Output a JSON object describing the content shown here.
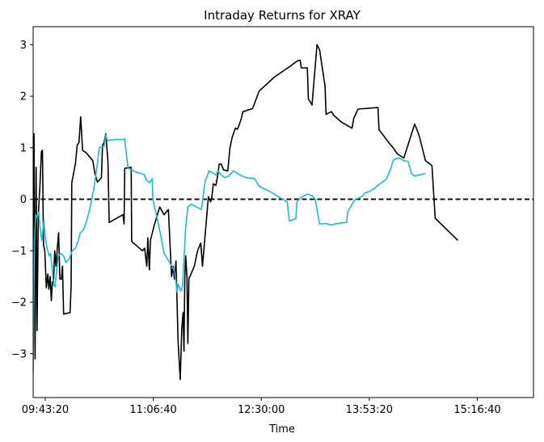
{
  "chart_data": {
    "type": "line",
    "title": "Intraday Returns for XRAY",
    "xlabel": "Time",
    "ylabel": "",
    "x_unit": "time of day (seconds since midnight)",
    "xlim": [
      34440,
      57600
    ],
    "ylim": [
      -3.85,
      3.35
    ],
    "yticks": [
      -3,
      -2,
      -1,
      0,
      1,
      2,
      3
    ],
    "ytick_labels": [
      "−3",
      "−2",
      "−1",
      "0",
      "1",
      "2",
      "3"
    ],
    "xticks": [
      35000,
      40000,
      45000,
      50000,
      55000
    ],
    "xtick_labels": [
      "09:43:20",
      "11:06:40",
      "12:30:00",
      "13:53:20",
      "15:16:40"
    ],
    "reference_line": {
      "y": 0,
      "style": "dashed",
      "color": "#000000"
    },
    "grid": false,
    "legend": "none",
    "series": [
      {
        "color": "#000000",
        "points": [
          [
            34440,
            -3.3
          ],
          [
            34480,
            1.27
          ],
          [
            34530,
            -3.1
          ],
          [
            34580,
            0.62
          ],
          [
            34620,
            -2.55
          ],
          [
            34680,
            -0.3
          ],
          [
            34750,
            0.22
          ],
          [
            34820,
            0.92
          ],
          [
            34870,
            0.95
          ],
          [
            34920,
            -0.88
          ],
          [
            34980,
            -1.0
          ],
          [
            35050,
            -1.72
          ],
          [
            35120,
            -1.45
          ],
          [
            35170,
            -1.75
          ],
          [
            35230,
            -1.5
          ],
          [
            35280,
            -1.97
          ],
          [
            35330,
            -1.6
          ],
          [
            35380,
            -1.65
          ],
          [
            35440,
            -1.0
          ],
          [
            35500,
            -1.3
          ],
          [
            35550,
            -1.0
          ],
          [
            35620,
            -0.65
          ],
          [
            35680,
            -1.55
          ],
          [
            35750,
            -1.55
          ],
          [
            35800,
            -1.3
          ],
          [
            35850,
            -2.23
          ],
          [
            36150,
            -2.2
          ],
          [
            36200,
            -1.67
          ],
          [
            36230,
            0.32
          ],
          [
            36400,
            0.7
          ],
          [
            36480,
            1.05
          ],
          [
            36560,
            1.1
          ],
          [
            36640,
            1.6
          ],
          [
            36730,
            0.95
          ],
          [
            36900,
            0.9
          ],
          [
            37200,
            0.75
          ],
          [
            37300,
            0.5
          ],
          [
            37420,
            0.33
          ],
          [
            37600,
            0.42
          ],
          [
            37650,
            1.05
          ],
          [
            37720,
            1.1
          ],
          [
            37800,
            1.27
          ],
          [
            37900,
            0.75
          ],
          [
            37960,
            -0.45
          ],
          [
            38600,
            -0.3
          ],
          [
            38650,
            -0.48
          ],
          [
            38680,
            0.6
          ],
          [
            38980,
            0.62
          ],
          [
            39000,
            -0.82
          ],
          [
            39500,
            -1.0
          ],
          [
            39600,
            -0.95
          ],
          [
            39700,
            -1.3
          ],
          [
            39750,
            -0.75
          ],
          [
            39820,
            -1.37
          ],
          [
            39870,
            -0.8
          ],
          [
            40050,
            -0.5
          ],
          [
            40300,
            -0.15
          ],
          [
            40500,
            -0.3
          ],
          [
            40700,
            -0.2
          ],
          [
            40850,
            -1.5
          ],
          [
            40920,
            -1.3
          ],
          [
            40980,
            -1.55
          ],
          [
            41050,
            -1.2
          ],
          [
            41150,
            -2.75
          ],
          [
            41250,
            -3.5
          ],
          [
            41320,
            -2.5
          ],
          [
            41380,
            -2.2
          ],
          [
            41420,
            -2.95
          ],
          [
            41460,
            -1.55
          ],
          [
            41500,
            -1.1
          ],
          [
            41560,
            -1.5
          ],
          [
            41600,
            -2.8
          ],
          [
            41650,
            -1.53
          ],
          [
            41700,
            -1.5
          ],
          [
            41900,
            -1.3
          ],
          [
            42050,
            -1.0
          ],
          [
            42200,
            -0.85
          ],
          [
            42280,
            -1.3
          ],
          [
            42550,
            0.05
          ],
          [
            42650,
            -0.05
          ],
          [
            42700,
            0.0
          ],
          [
            42780,
            0.3
          ],
          [
            42900,
            0.27
          ],
          [
            43000,
            0.5
          ],
          [
            43050,
            0.68
          ],
          [
            43150,
            0.68
          ],
          [
            43250,
            0.57
          ],
          [
            43450,
            0.55
          ],
          [
            43550,
            1.0
          ],
          [
            43650,
            1.2
          ],
          [
            43800,
            1.38
          ],
          [
            43900,
            1.36
          ],
          [
            44000,
            1.47
          ],
          [
            44080,
            1.57
          ],
          [
            44150,
            1.7
          ],
          [
            44600,
            1.76
          ],
          [
            44900,
            2.1
          ],
          [
            45600,
            2.37
          ],
          [
            46400,
            2.6
          ],
          [
            46650,
            2.68
          ],
          [
            46800,
            2.7
          ],
          [
            46850,
            2.55
          ],
          [
            47130,
            2.55
          ],
          [
            47180,
            1.95
          ],
          [
            47350,
            1.83
          ],
          [
            47580,
            3.0
          ],
          [
            47700,
            2.9
          ],
          [
            47950,
            2.2
          ],
          [
            48000,
            1.65
          ],
          [
            48250,
            1.7
          ],
          [
            48350,
            1.63
          ],
          [
            48700,
            1.5
          ],
          [
            49200,
            1.38
          ],
          [
            49280,
            1.57
          ],
          [
            49480,
            1.75
          ],
          [
            50400,
            1.78
          ],
          [
            50450,
            1.35
          ],
          [
            50900,
            1.1
          ],
          [
            51100,
            1.0
          ],
          [
            51300,
            0.88
          ],
          [
            51600,
            0.8
          ],
          [
            51900,
            1.2
          ],
          [
            52100,
            1.46
          ],
          [
            52300,
            1.25
          ],
          [
            52600,
            0.75
          ],
          [
            52900,
            0.65
          ],
          [
            53050,
            -0.37
          ],
          [
            54100,
            -0.8
          ]
        ]
      },
      {
        "color": "#17becf",
        "points": [
          [
            34440,
            -3.4
          ],
          [
            34500,
            -0.8
          ],
          [
            34560,
            -0.3
          ],
          [
            34620,
            -0.35
          ],
          [
            34700,
            -0.25
          ],
          [
            34760,
            -0.55
          ],
          [
            34840,
            -0.8
          ],
          [
            34880,
            -0.65
          ],
          [
            34940,
            -0.4
          ],
          [
            35000,
            -0.75
          ],
          [
            35060,
            -0.9
          ],
          [
            35120,
            -1.0
          ],
          [
            35180,
            -1.1
          ],
          [
            35250,
            -1.05
          ],
          [
            35330,
            -1.4
          ],
          [
            35380,
            -1.65
          ],
          [
            35450,
            -1.7
          ],
          [
            35530,
            -1.4
          ],
          [
            35600,
            -1.1
          ],
          [
            35700,
            -1.05
          ],
          [
            35850,
            -1.1
          ],
          [
            35950,
            -1.23
          ],
          [
            36120,
            -1.15
          ],
          [
            36250,
            -1.0
          ],
          [
            36400,
            -0.95
          ],
          [
            36530,
            -0.8
          ],
          [
            36630,
            -0.65
          ],
          [
            36760,
            -0.6
          ],
          [
            36900,
            -0.45
          ],
          [
            37080,
            -0.15
          ],
          [
            37250,
            0.2
          ],
          [
            37420,
            0.7
          ],
          [
            37500,
            1.0
          ],
          [
            37720,
            1.02
          ],
          [
            37800,
            1.25
          ],
          [
            37880,
            1.13
          ],
          [
            38000,
            1.15
          ],
          [
            38300,
            1.16
          ],
          [
            38600,
            1.16
          ],
          [
            38680,
            1.17
          ],
          [
            38830,
            0.6
          ],
          [
            38950,
            0.58
          ],
          [
            39200,
            0.53
          ],
          [
            39580,
            0.48
          ],
          [
            39680,
            0.38
          ],
          [
            39830,
            0.32
          ],
          [
            39950,
            0.4
          ],
          [
            39980,
            0.0
          ],
          [
            40250,
            -0.5
          ],
          [
            40500,
            -1.05
          ],
          [
            40900,
            -1.33
          ],
          [
            41000,
            -1.42
          ],
          [
            41050,
            -1.6
          ],
          [
            41100,
            -1.8
          ],
          [
            41150,
            -1.65
          ],
          [
            41280,
            -1.78
          ],
          [
            41350,
            -1.7
          ],
          [
            41500,
            -0.55
          ],
          [
            41600,
            -0.15
          ],
          [
            41750,
            -0.1
          ],
          [
            42000,
            -0.15
          ],
          [
            42230,
            -0.2
          ],
          [
            42400,
            0.35
          ],
          [
            42500,
            0.45
          ],
          [
            42580,
            0.55
          ],
          [
            42700,
            0.52
          ],
          [
            42800,
            0.5
          ],
          [
            42900,
            0.47
          ],
          [
            43000,
            0.55
          ],
          [
            43150,
            0.47
          ],
          [
            43300,
            0.42
          ],
          [
            43500,
            0.45
          ],
          [
            43700,
            0.55
          ],
          [
            43900,
            0.5
          ],
          [
            44050,
            0.46
          ],
          [
            44300,
            0.42
          ],
          [
            44700,
            0.4
          ],
          [
            44900,
            0.25
          ],
          [
            45400,
            0.15
          ],
          [
            46000,
            0.0
          ],
          [
            46200,
            -0.05
          ],
          [
            46300,
            -0.42
          ],
          [
            46600,
            -0.38
          ],
          [
            46650,
            -0.05
          ],
          [
            46800,
            0.02
          ],
          [
            46900,
            0.05
          ],
          [
            47150,
            0.1
          ],
          [
            47350,
            0.07
          ],
          [
            47500,
            0.0
          ],
          [
            47600,
            -0.25
          ],
          [
            47700,
            -0.48
          ],
          [
            48000,
            -0.47
          ],
          [
            48200,
            -0.5
          ],
          [
            48700,
            -0.46
          ],
          [
            48950,
            -0.45
          ],
          [
            49000,
            -0.25
          ],
          [
            49200,
            -0.1
          ],
          [
            49350,
            0.0
          ],
          [
            49500,
            0.02
          ],
          [
            49650,
            0.05
          ],
          [
            49800,
            0.12
          ],
          [
            50000,
            0.15
          ],
          [
            50200,
            0.2
          ],
          [
            50400,
            0.27
          ],
          [
            50600,
            0.33
          ],
          [
            50800,
            0.4
          ],
          [
            51000,
            0.6
          ],
          [
            51100,
            0.75
          ],
          [
            51200,
            0.78
          ],
          [
            51400,
            0.8
          ],
          [
            51600,
            0.75
          ],
          [
            51800,
            0.73
          ],
          [
            51950,
            0.5
          ],
          [
            52100,
            0.45
          ],
          [
            52600,
            0.5
          ]
        ]
      }
    ]
  }
}
